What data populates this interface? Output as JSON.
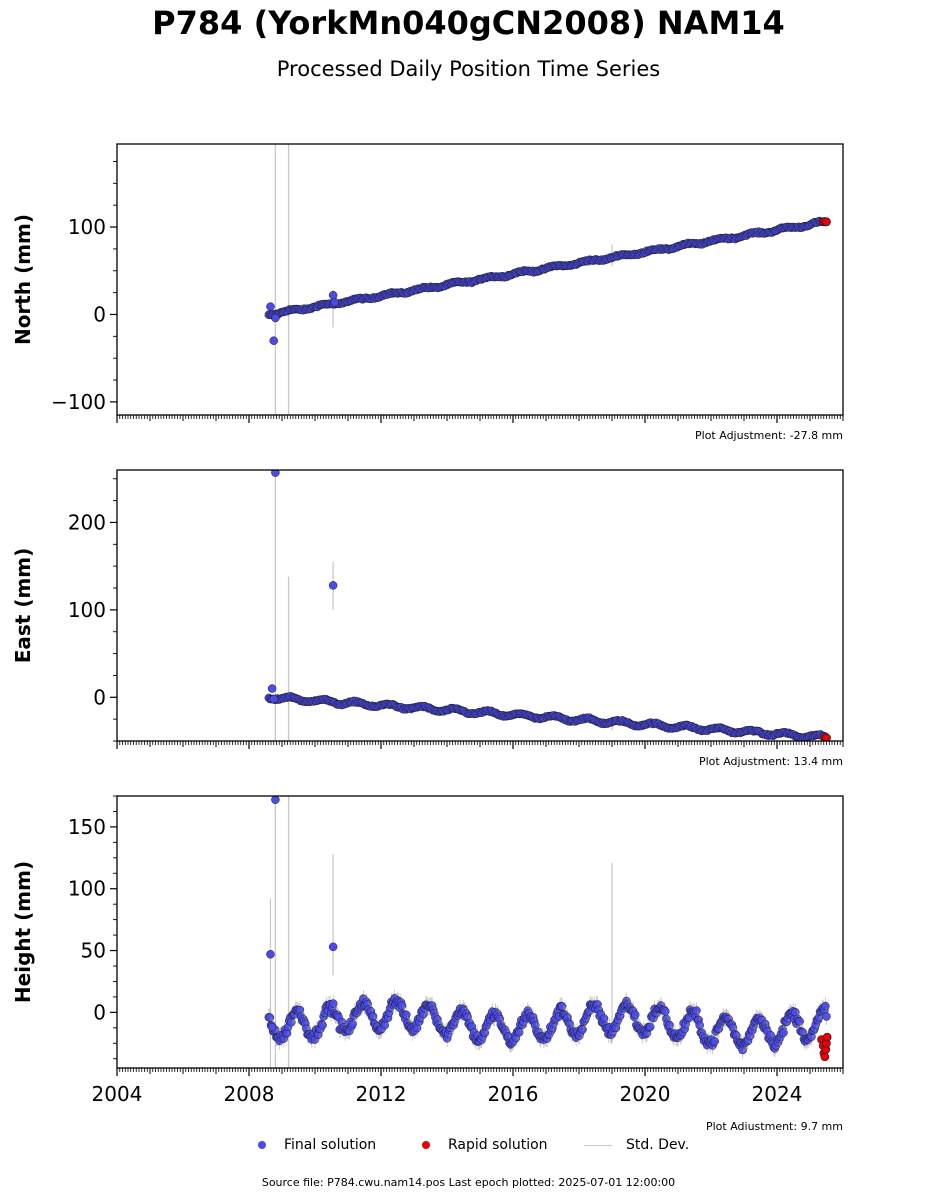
{
  "header": {
    "title": "P784 (YorkMn040gCN2008) NAM14",
    "subtitle": "Processed Daily Position Time Series"
  },
  "legend": {
    "final_label": "Final solution",
    "rapid_label": "Rapid solution",
    "std_label": "Std. Dev."
  },
  "footer": {
    "text": "Source file: P784.cwu.nam14.pos  Last epoch plotted: 2025-07-01 12:00:00"
  },
  "colors": {
    "final": "#4b4bea",
    "rapid": "#e8000b",
    "std": "#c8c8c8",
    "marker_edge": "#1a1a1a"
  },
  "chart_data": [
    {
      "type": "scatter",
      "name": "north",
      "ylabel": "North (mm)",
      "adjustment_label": "Plot Adjustment: -27.8 mm",
      "xlim": [
        2004.0,
        2026.0
      ],
      "ylim": [
        -115,
        195
      ],
      "yticks": [
        -100,
        0,
        100
      ],
      "ytick_labels": [
        "−100",
        "0",
        "100"
      ],
      "trend": {
        "start_x": 2008.6,
        "start_y": 0.0,
        "end_x": 2025.5,
        "end_y": 106.0
      },
      "rapid_points": [
        [
          2025.4,
          106.0
        ],
        [
          2025.45,
          106.5
        ],
        [
          2025.5,
          106.0
        ]
      ],
      "outliers": [
        [
          2008.65,
          9
        ],
        [
          2008.75,
          -30
        ],
        [
          2008.8,
          -4
        ],
        [
          2010.55,
          22
        ],
        [
          2010.6,
          14
        ]
      ],
      "std_spikes": [
        [
          2008.8,
          -115,
          195
        ],
        [
          2009.2,
          -115,
          195
        ],
        [
          2010.55,
          -15,
          28
        ],
        [
          2019.0,
          55,
          80
        ]
      ]
    },
    {
      "type": "scatter",
      "name": "east",
      "ylabel": "East (mm)",
      "adjustment_label": "Plot Adjustment: 13.4 mm",
      "xlim": [
        2004.0,
        2026.0
      ],
      "ylim": [
        -50,
        260
      ],
      "yticks": [
        0,
        100,
        200
      ],
      "ytick_labels": [
        "0",
        "100",
        "200"
      ],
      "trend": {
        "start_x": 2008.6,
        "start_y": 0.0,
        "end_x": 2025.5,
        "end_y": -46.0
      },
      "rapid_points": [
        [
          2025.45,
          -46.0
        ],
        [
          2025.5,
          -46.5
        ]
      ],
      "outliers": [
        [
          2008.7,
          10
        ],
        [
          2008.75,
          -2
        ],
        [
          2008.8,
          257
        ],
        [
          2010.55,
          128
        ]
      ],
      "std_spikes": [
        [
          2008.8,
          -50,
          260
        ],
        [
          2009.2,
          -50,
          138
        ],
        [
          2010.55,
          100,
          155
        ],
        [
          2019.0,
          -38,
          -22
        ]
      ]
    },
    {
      "type": "scatter",
      "name": "height",
      "ylabel": "Height (mm)",
      "adjustment_label": "Plot Adjustment: 9.7 mm",
      "xlim": [
        2004.0,
        2026.0
      ],
      "ylim": [
        -45,
        175
      ],
      "yticks": [
        0,
        50,
        100,
        150
      ],
      "ytick_labels": [
        "0",
        "50",
        "100",
        "150"
      ],
      "xticks": [
        2004,
        2008,
        2012,
        2016,
        2020,
        2024
      ],
      "xtick_labels": [
        "2004",
        "2008",
        "2012",
        "2016",
        "2020",
        "2024"
      ],
      "trend": {
        "start_x": 2008.6,
        "start_y": -5.0,
        "end_x": 2025.5,
        "end_y": -12.0
      },
      "rapid_points": [
        [
          2025.35,
          -22
        ],
        [
          2025.4,
          -27
        ],
        [
          2025.42,
          -33
        ],
        [
          2025.45,
          -36
        ],
        [
          2025.48,
          -30
        ],
        [
          2025.5,
          -25
        ],
        [
          2025.52,
          -20
        ]
      ],
      "outliers": [
        [
          2008.65,
          47
        ],
        [
          2008.8,
          172
        ],
        [
          2010.55,
          53
        ],
        [
          2008.7,
          -12
        ]
      ],
      "std_spikes": [
        [
          2008.65,
          -45,
          92
        ],
        [
          2008.8,
          -45,
          175
        ],
        [
          2009.2,
          -45,
          175
        ],
        [
          2010.55,
          30,
          128
        ],
        [
          2019.0,
          -25,
          121
        ]
      ]
    }
  ]
}
